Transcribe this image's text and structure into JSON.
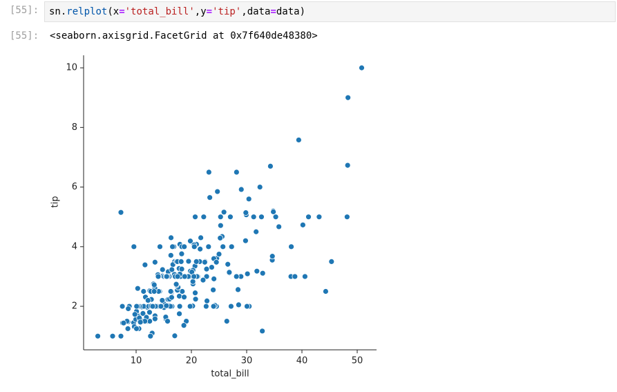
{
  "cells": [
    {
      "prompt": "[55]:",
      "code_tokens": [
        "sn.",
        "relplot",
        "(",
        "x",
        "=",
        "'total_bill'",
        ",",
        "y",
        "=",
        "'tip'",
        ",",
        "data",
        "=",
        "data",
        ")"
      ],
      "output_prompt": "[55]:",
      "output": "<seaborn.axisgrid.FacetGrid at 0x7f640de48380>"
    }
  ],
  "chart_data": {
    "type": "scatter",
    "xlabel": "total_bill",
    "ylabel": "tip",
    "color": "#1f77b4",
    "xlim": [
      0.5,
      53.5
    ],
    "ylim": [
      0.54,
      10.42
    ],
    "xticks": [
      10,
      20,
      30,
      40,
      50
    ],
    "yticks": [
      2,
      4,
      6,
      8,
      10
    ],
    "x": [
      16.99,
      10.34,
      21.01,
      23.68,
      24.59,
      25.29,
      8.77,
      26.88,
      15.04,
      14.78,
      10.27,
      35.26,
      15.42,
      18.43,
      14.83,
      21.58,
      10.33,
      16.29,
      16.97,
      20.65,
      17.92,
      20.29,
      15.77,
      39.42,
      19.82,
      17.81,
      13.37,
      12.69,
      21.7,
      19.65,
      9.55,
      18.35,
      15.06,
      20.69,
      17.78,
      24.06,
      16.31,
      16.93,
      18.69,
      31.27,
      16.04,
      17.46,
      13.94,
      9.68,
      30.4,
      18.29,
      22.23,
      32.4,
      28.55,
      18.04,
      12.54,
      10.29,
      34.81,
      9.94,
      25.56,
      19.49,
      38.01,
      26.41,
      11.24,
      48.27,
      20.29,
      13.81,
      11.02,
      18.29,
      17.59,
      20.08,
      16.45,
      3.07,
      20.23,
      15.01,
      12.02,
      17.07,
      26.86,
      25.28,
      14.73,
      10.51,
      17.92,
      27.2,
      22.76,
      17.29,
      19.44,
      16.66,
      10.07,
      32.68,
      15.98,
      34.83,
      13.03,
      18.28,
      24.71,
      21.16,
      28.97,
      22.49,
      5.75,
      16.32,
      22.75,
      40.17,
      27.28,
      12.03,
      21.01,
      12.46,
      11.35,
      15.38,
      44.3,
      22.42,
      20.92,
      15.36,
      20.49,
      25.21,
      18.24,
      14.31,
      14,
      7.25,
      38.07,
      23.95,
      25.71,
      17.31,
      29.93,
      10.65,
      12.43,
      24.08,
      11.69,
      13.42,
      14.26,
      15.95,
      12.48,
      29.8,
      8.52,
      14.52,
      11.38,
      22.82,
      19.08,
      20.27,
      11.17,
      12.26,
      18.26,
      8.51,
      10.33,
      14.15,
      16,
      13.16,
      17.47,
      34.3,
      41.19,
      27.05,
      16.43,
      8.35,
      18.64,
      11.87,
      9.78,
      7.51,
      14.07,
      13.13,
      17.26,
      24.55,
      19.77,
      29.85,
      48.17,
      25,
      13.39,
      16.49,
      21.5,
      12.66,
      16.21,
      13.81,
      17.51,
      24.52,
      20.76,
      31.71,
      10.59,
      10.63,
      50.81,
      15.81,
      7.25,
      31.85,
      16.82,
      32.9,
      17.89,
      14.48,
      9.6,
      34.63,
      34.65,
      23.33,
      45.35,
      23.17,
      40.55,
      20.69,
      20.9,
      30.46,
      18.15,
      23.1,
      15.69,
      19.81,
      28.44,
      15.48,
      16.58,
      7.56,
      10.34,
      43.11,
      13,
      13.51,
      18.71,
      12.74,
      13,
      16.4,
      20.53,
      16.47,
      26.59,
      38.73,
      24.27,
      12.76,
      30.06,
      25.89,
      48.33,
      13.27,
      28.17,
      12.9,
      28.15,
      11.59,
      7.74,
      30.14,
      12.16,
      13.42,
      8.58,
      15.98,
      13.42,
      16.27,
      10.09,
      20.45,
      13.28,
      22.12,
      24.01,
      15.69,
      11.61,
      10.77,
      15.53,
      10.07,
      12.6,
      32.83,
      35.83,
      29.03,
      27.18,
      22.67,
      17.82,
      18.78
    ],
    "values": [
      1.01,
      1.66,
      3.5,
      3.31,
      3.61,
      4.71,
      2,
      3.12,
      1.96,
      3.23,
      1.71,
      5,
      1.57,
      3,
      3.02,
      3.92,
      1.67,
      3.71,
      3.5,
      3.35,
      4.08,
      2.75,
      2.23,
      7.58,
      3.18,
      2.34,
      2,
      2,
      4.3,
      3,
      1.45,
      2.5,
      3,
      2.45,
      3.27,
      3.6,
      2,
      3.07,
      2.31,
      5,
      2.24,
      2.54,
      3.06,
      1.32,
      5.6,
      3,
      5,
      6,
      2.05,
      3,
      2.5,
      2.6,
      5.2,
      1.56,
      4.34,
      3.51,
      3,
      1.5,
      1.76,
      6.73,
      3.21,
      2,
      1.98,
      3.76,
      2.64,
      3.15,
      2.47,
      1,
      2.01,
      2.09,
      1.97,
      3,
      3.14,
      5,
      2.2,
      1.25,
      3.08,
      4,
      3,
      2.71,
      3,
      3.4,
      1.83,
      5,
      2.03,
      5.17,
      2,
      4,
      5.85,
      3,
      3,
      3.5,
      1,
      4.3,
      3.25,
      4.73,
      4,
      1.5,
      3,
      1.5,
      2.5,
      3,
      2.5,
      3.48,
      4.08,
      1.64,
      4.06,
      4.29,
      3.76,
      4,
      3,
      1,
      4,
      2.55,
      4,
      3.5,
      5.07,
      1.5,
      1.8,
      2.92,
      2.31,
      1.68,
      2.5,
      2,
      2.52,
      4.2,
      1.48,
      2,
      2,
      2.18,
      1.5,
      2.83,
      1.5,
      2,
      3.25,
      1.25,
      2,
      2,
      2,
      2.75,
      3.5,
      6.7,
      5,
      5,
      2.3,
      1.5,
      1.36,
      1.63,
      1.73,
      2,
      2.5,
      2,
      2.74,
      2,
      2,
      5.14,
      5,
      3.75,
      2.61,
      2,
      3.5,
      2.5,
      2,
      2,
      3,
      3.48,
      2.24,
      4.5,
      1.61,
      2,
      10,
      3.16,
      5.15,
      3.18,
      4,
      3.11,
      2,
      2,
      4,
      3.55,
      3.68,
      5.65,
      3.5,
      6.5,
      3,
      5,
      3.5,
      2,
      3.5,
      4,
      1.5,
      4.19,
      2.56,
      2.02,
      4,
      1.44,
      2,
      5,
      2,
      2,
      4,
      2.01,
      2,
      2.5,
      4,
      3.23,
      3.41,
      3,
      2.03,
      2.23,
      2,
      5.16,
      9,
      2.5,
      6.5,
      1.1,
      3,
      1.5,
      1.44,
      3.09,
      2.2,
      3.48,
      1.92,
      3,
      1.58,
      2.5,
      2,
      3,
      2.72,
      2.88,
      2,
      3,
      3.39,
      1.47,
      3,
      1.25,
      1,
      1.17,
      4.67,
      5.92,
      2,
      2,
      1.75,
      3
    ]
  }
}
